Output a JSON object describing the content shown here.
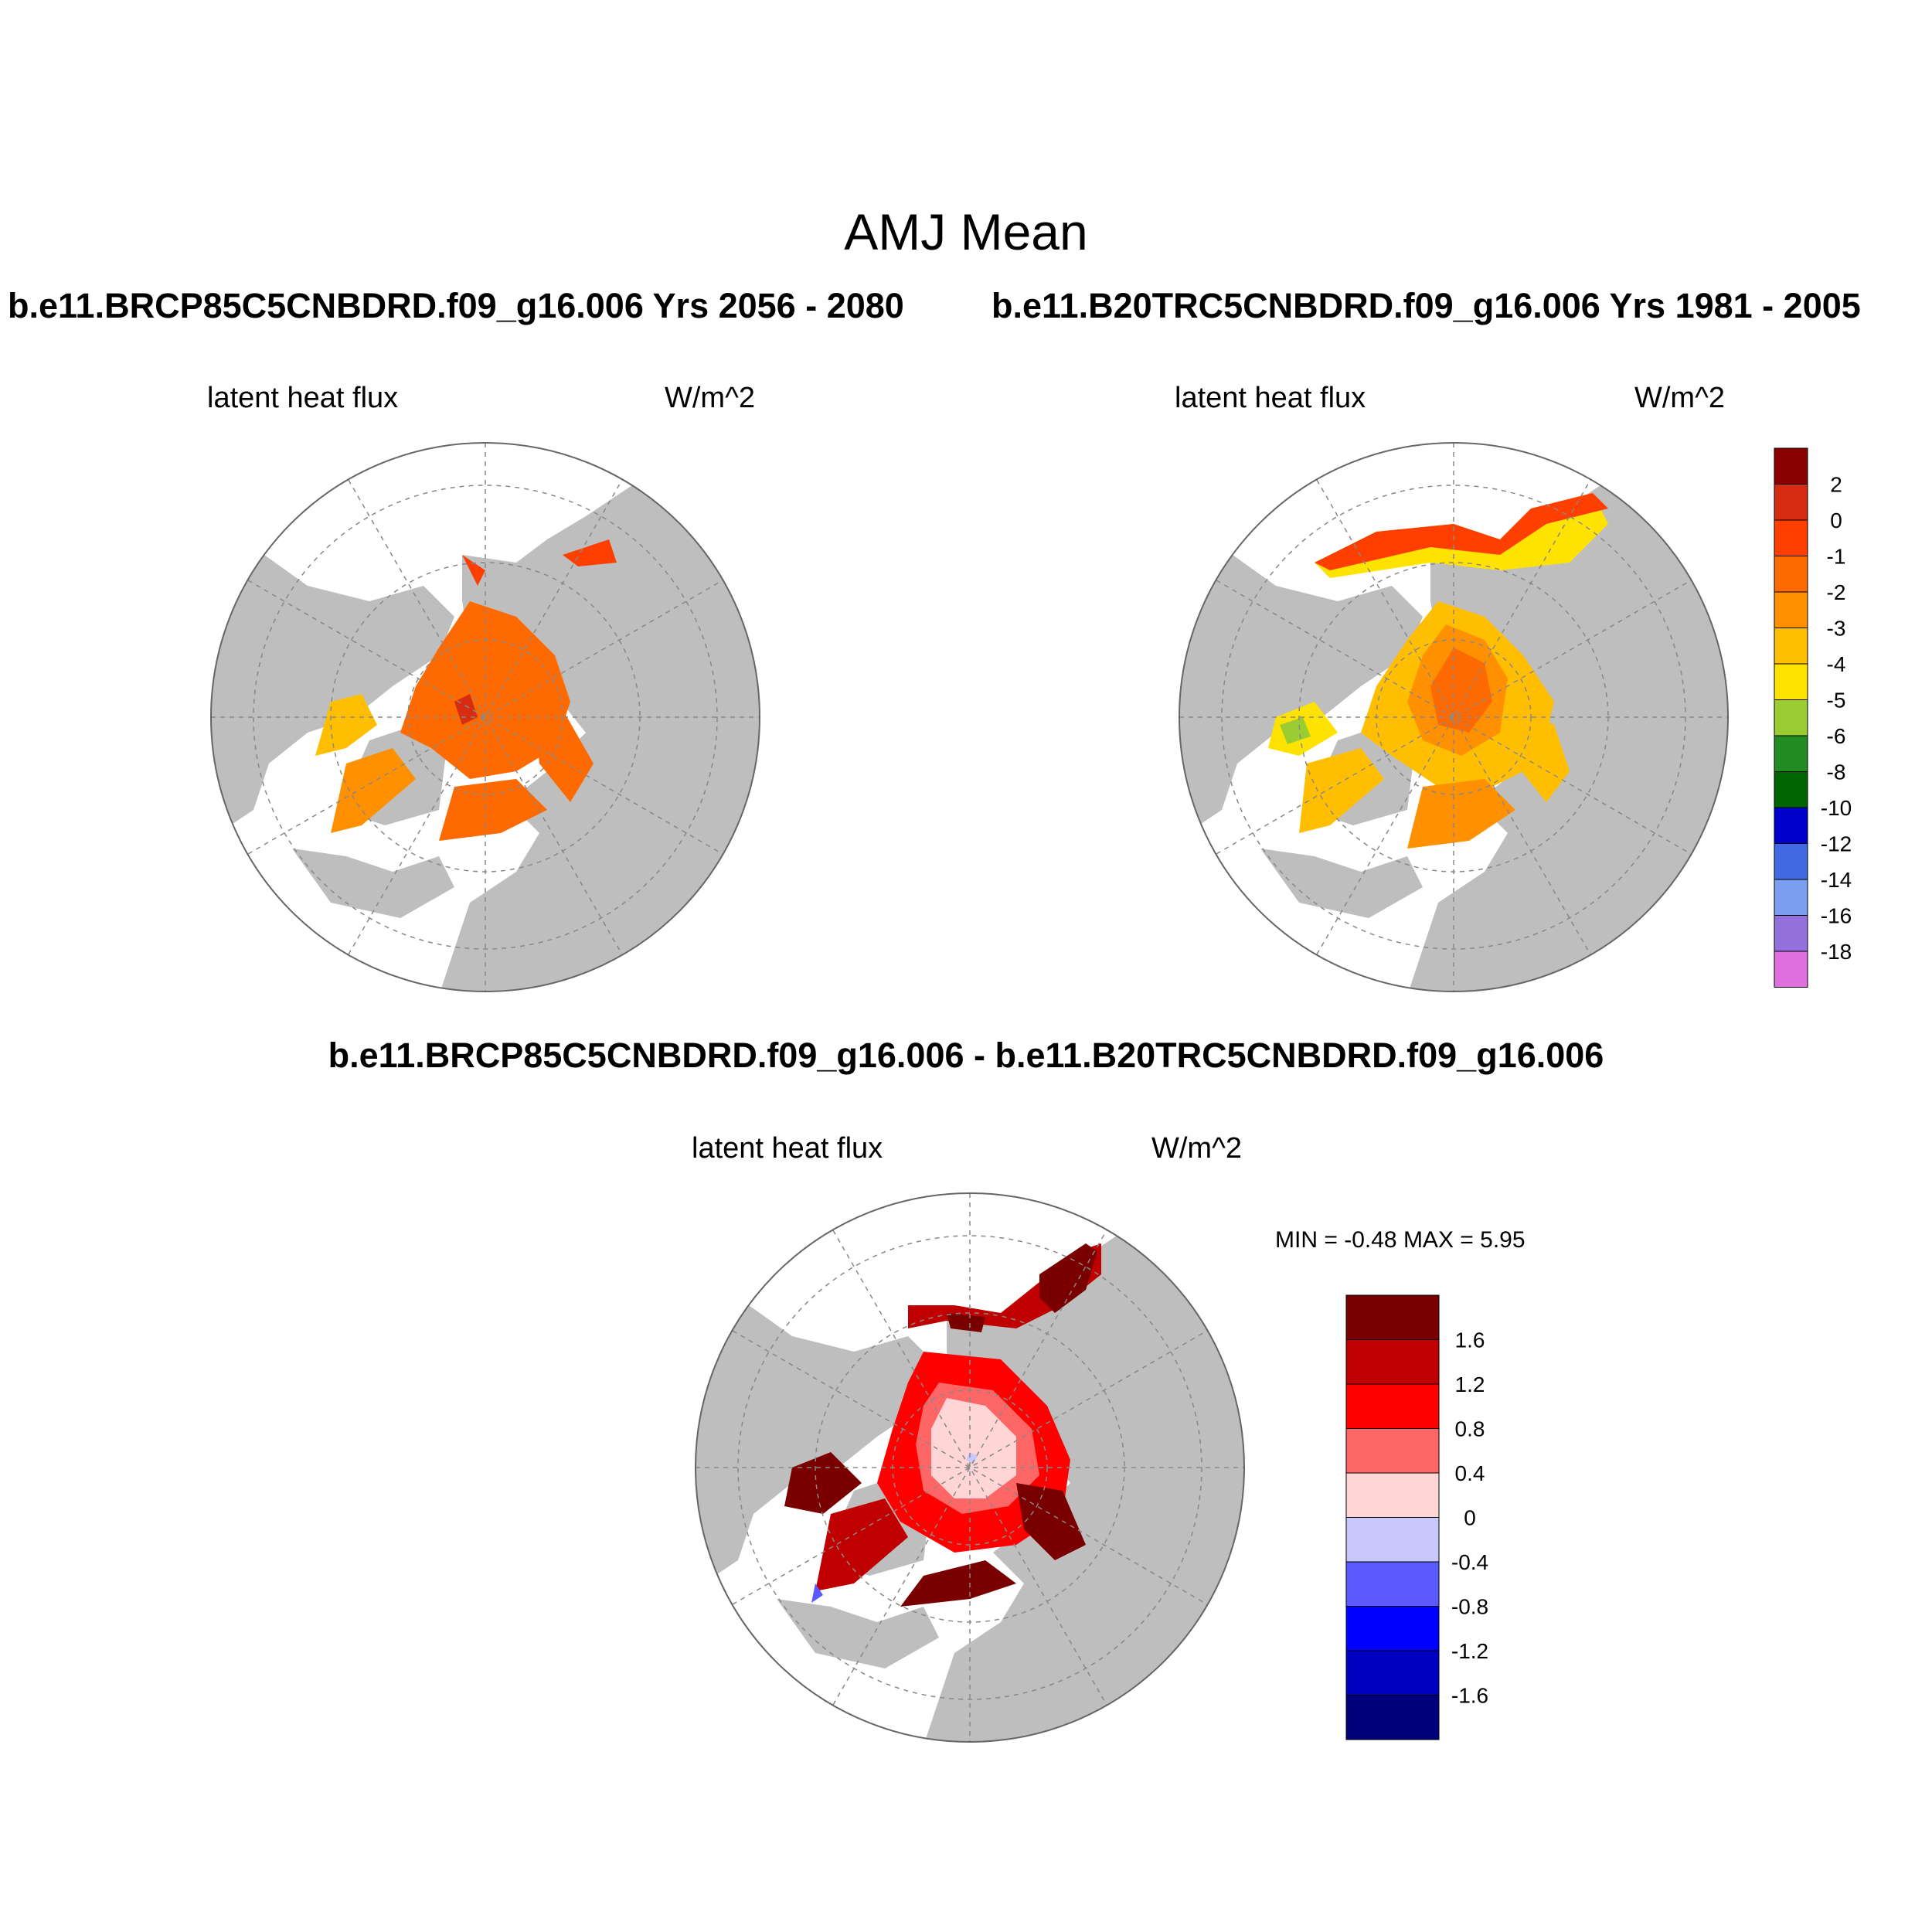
{
  "figure": {
    "title": "AMJ Mean",
    "case_future": "b.e11.BRCP85C5CNBDRD.f09_g16.006  Yrs 2056 - 2080",
    "case_hist": "b.e11.B20TRC5CNBDRD.f09_g16.006  Yrs 1981 - 2005",
    "diff_title": "b.e11.BRCP85C5CNBDRD.f09_g16.006 - b.e11.B20TRC5CNBDRD.f09_g16.006"
  },
  "panels": [
    {
      "id": "future",
      "variable": "latent heat flux",
      "units": "W/m^2"
    },
    {
      "id": "hist",
      "variable": "latent heat flux",
      "units": "W/m^2"
    },
    {
      "id": "diff",
      "variable": "latent heat flux",
      "units": "W/m^2",
      "min_label": "MIN =",
      "min_value": "-0.48",
      "max_label": "MAX =",
      "max_value": "5.95"
    }
  ],
  "colorbar_abs": {
    "colors": [
      "#8b0000",
      "#d62c11",
      "#ff3f00",
      "#ff6a00",
      "#ff9000",
      "#ffbf00",
      "#ffe300",
      "#9acd32",
      "#228b22",
      "#006400",
      "#0000cd",
      "#4169e1",
      "#7b9ef0",
      "#9370db",
      "#e070e0"
    ],
    "labels": [
      "2",
      "0",
      "-1",
      "-2",
      "-3",
      "-4",
      "-5",
      "-6",
      "-8",
      "-10",
      "-12",
      "-14",
      "-16",
      "-18"
    ]
  },
  "colorbar_diff": {
    "colors": [
      "#7a0000",
      "#c00000",
      "#ff0000",
      "#ff6666",
      "#ffd5d5",
      "#c8c8ff",
      "#5a5aff",
      "#0000ff",
      "#0000c0",
      "#00007a"
    ],
    "labels": [
      "1.6",
      "1.2",
      "0.8",
      "0.4",
      "0",
      "-0.4",
      "-0.8",
      "-1.2",
      "-1.6"
    ]
  },
  "colors": {
    "land": "#bebebe",
    "ocean": "#ffffff",
    "grid": "#888888"
  }
}
